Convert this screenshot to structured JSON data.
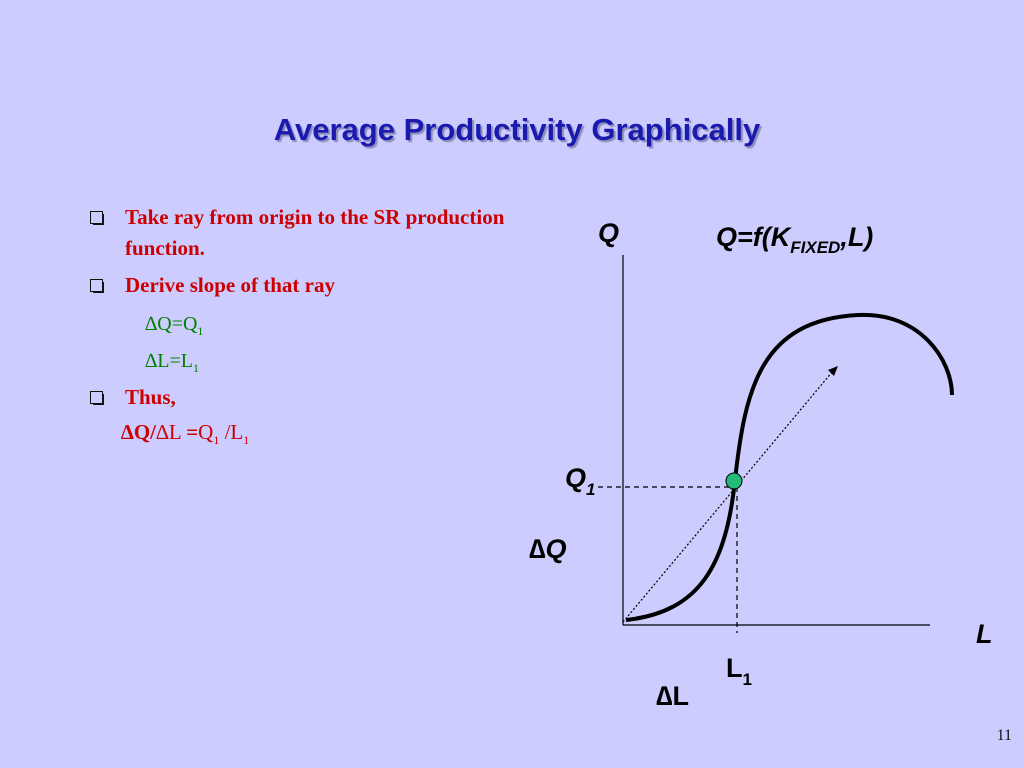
{
  "title": "Average Productivity Graphically",
  "bullets": [
    {
      "text": "Take ray from origin to the SR production function."
    },
    {
      "text": "Derive slope of that ray"
    },
    {
      "text": "Thus,"
    }
  ],
  "sub_items": [
    {
      "delta": "∆",
      "text": "Q=Q",
      "subscript": "1"
    },
    {
      "delta": "∆",
      "text": "L=L",
      "subscript": "1"
    }
  ],
  "formula": {
    "part1": "∆Q/",
    "part2": "∆L ",
    "part3": "=",
    "part4": "Q",
    "sub1": "1",
    "part5": " /L",
    "sub2": "1"
  },
  "diagram": {
    "y_axis_label": "Q",
    "x_axis_label": "L",
    "function_label_main": "Q=f(K",
    "function_label_sub": "FIXED",
    "function_label_end": ",L)",
    "q1_label": "Q",
    "q1_sub": "1",
    "l1_label": "L",
    "l1_sub": "1",
    "delta_q_label": "∆Q",
    "delta_l_label": "∆L",
    "point_color": "#22bb77"
  },
  "page_number": "11"
}
